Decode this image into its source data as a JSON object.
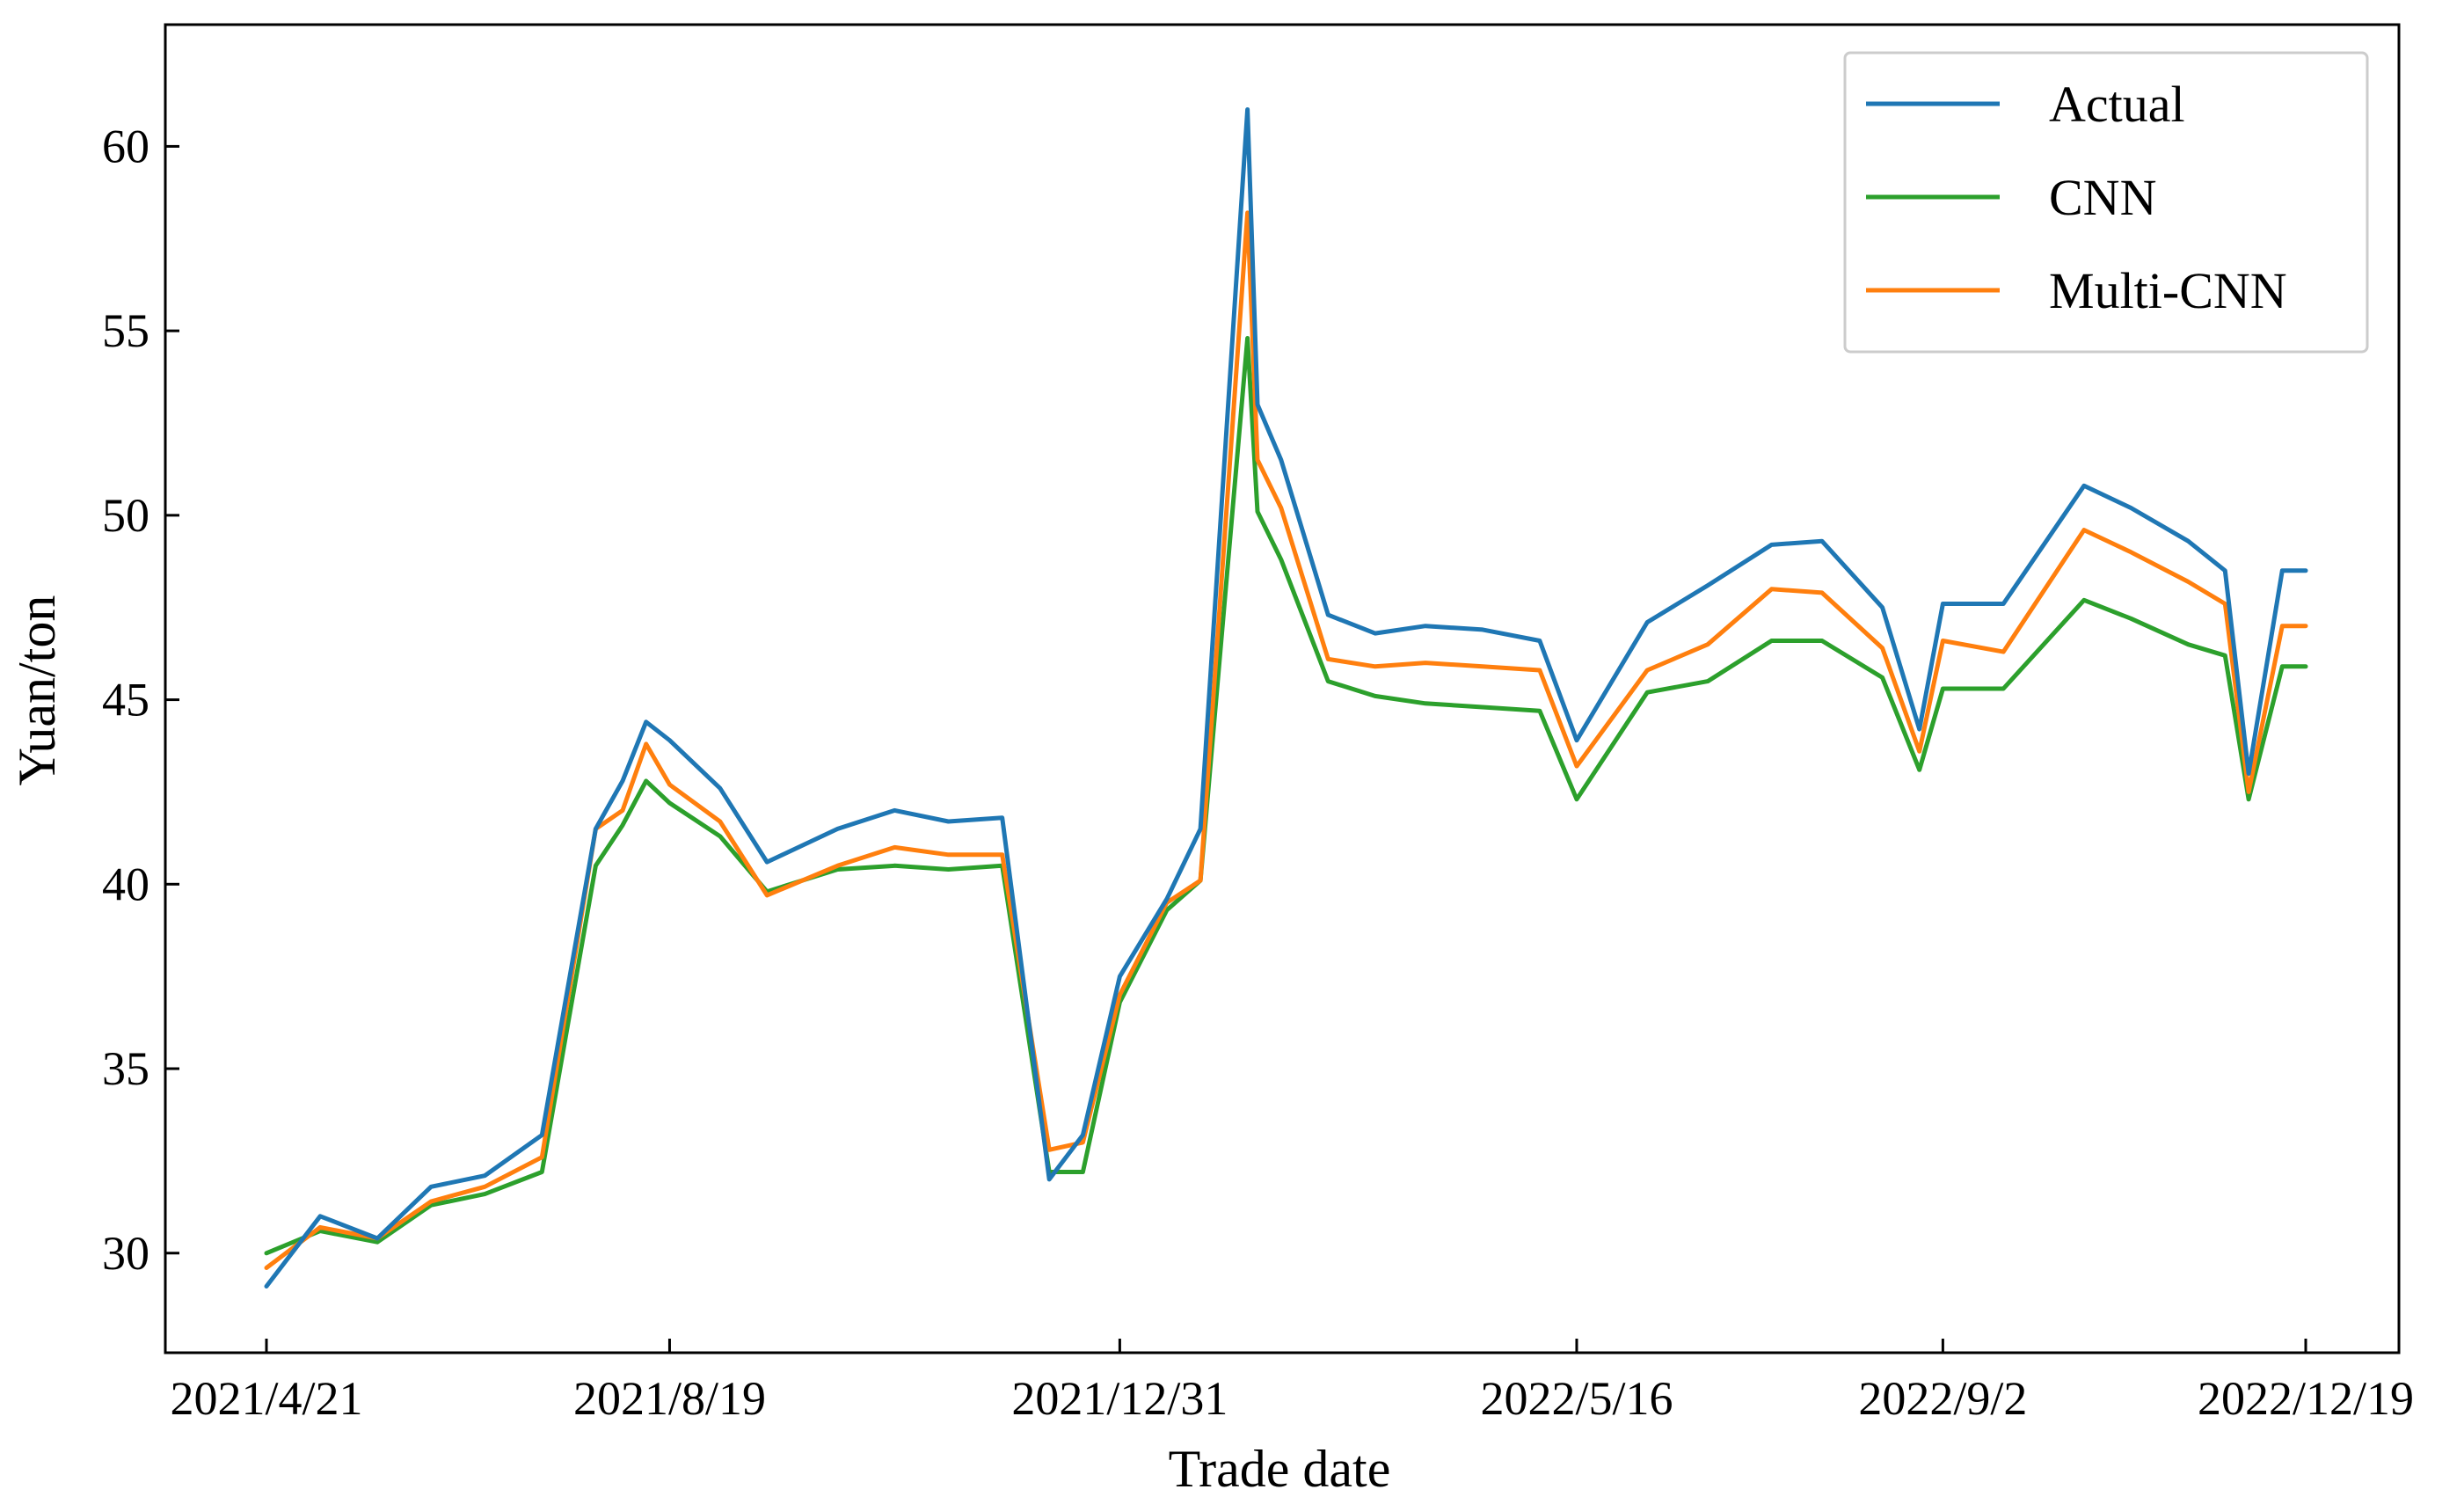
{
  "chart_data": {
    "type": "line",
    "xlabel": "Trade date",
    "ylabel": "Yuan/ton",
    "ylim": [
      27.3,
      63.3
    ],
    "yticks": [
      30,
      35,
      40,
      45,
      50,
      55,
      60
    ],
    "xtick_labels": [
      "2021/4/21",
      "2021/8/19",
      "2021/12/31",
      "2022/5/16",
      "2022/9/2",
      "2022/12/19"
    ],
    "grid": false,
    "legend_position": "top-right",
    "x": [
      "2021/4/21",
      "2021/5/7",
      "2021/5/24",
      "2021/6/9",
      "2021/6/25",
      "2021/7/12",
      "2021/7/28",
      "2021/8/5",
      "2021/8/12",
      "2021/8/19",
      "2021/9/3",
      "2021/9/17",
      "2021/10/8",
      "2021/10/25",
      "2021/11/10",
      "2021/11/26",
      "2021/12/10",
      "2021/12/20",
      "2021/12/31",
      "2022/1/14",
      "2022/1/24",
      "2022/2/7",
      "2022/2/10",
      "2022/2/17",
      "2022/3/3",
      "2022/3/17",
      "2022/4/1",
      "2022/4/18",
      "2022/5/5",
      "2022/5/16",
      "2022/6/6",
      "2022/6/24",
      "2022/7/13",
      "2022/7/28",
      "2022/8/15",
      "2022/8/26",
      "2022/9/2",
      "2022/9/20",
      "2022/10/14",
      "2022/10/28",
      "2022/11/14",
      "2022/11/25",
      "2022/12/2",
      "2022/12/12",
      "2022/12/19"
    ],
    "series": [
      {
        "name": "Actual",
        "color": "#1f77b4",
        "values": [
          29.1,
          31.0,
          30.4,
          31.8,
          32.1,
          33.2,
          41.5,
          42.8,
          44.4,
          43.9,
          42.6,
          40.6,
          41.5,
          42.0,
          41.7,
          41.8,
          32.0,
          33.2,
          37.5,
          39.6,
          41.5,
          61.0,
          53.0,
          51.5,
          47.3,
          46.8,
          47.0,
          46.9,
          46.6,
          43.9,
          47.1,
          48.1,
          49.2,
          49.3,
          47.5,
          44.2,
          47.6,
          47.6,
          50.8,
          50.2,
          49.3,
          48.5,
          43.0,
          48.5,
          48.5
        ]
      },
      {
        "name": "CNN",
        "color": "#2ca02c",
        "values": [
          30.0,
          30.6,
          30.3,
          31.3,
          31.6,
          32.2,
          40.5,
          41.6,
          42.8,
          42.2,
          41.3,
          39.8,
          40.4,
          40.5,
          40.4,
          40.5,
          32.2,
          32.2,
          36.8,
          39.3,
          40.1,
          54.8,
          50.1,
          48.8,
          45.5,
          45.1,
          44.9,
          44.8,
          44.7,
          42.3,
          45.2,
          45.5,
          46.6,
          46.6,
          45.6,
          43.1,
          45.3,
          45.3,
          47.7,
          47.2,
          46.5,
          46.2,
          42.3,
          45.9,
          45.9
        ]
      },
      {
        "name": "Multi-CNN",
        "color": "#ff7f0e",
        "values": [
          29.6,
          30.7,
          30.4,
          31.4,
          31.8,
          32.6,
          41.5,
          42.0,
          43.8,
          42.7,
          41.7,
          39.7,
          40.5,
          41.0,
          40.8,
          40.8,
          32.8,
          33.0,
          37.0,
          39.5,
          40.1,
          58.2,
          51.5,
          50.2,
          46.1,
          45.9,
          46.0,
          45.9,
          45.8,
          43.2,
          45.8,
          46.5,
          48.0,
          47.9,
          46.4,
          43.6,
          46.6,
          46.3,
          49.6,
          49.0,
          48.2,
          47.6,
          42.5,
          47.0,
          47.0
        ]
      }
    ]
  }
}
